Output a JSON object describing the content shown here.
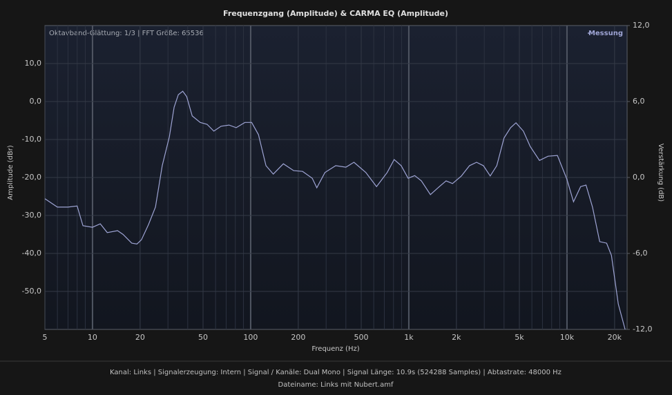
{
  "chart_data": {
    "type": "line",
    "title": "Frequenzgang (Amplitude) & CARMA EQ (Amplitude)",
    "annotation": "Oktavband-Glättung: 1/3 | FFT Größe: 65536",
    "x_label": "Frequenz (Hz)",
    "y_label": "Amplitude (dBr)",
    "y2_label": "Verstärkung (dB)",
    "x_log": true,
    "grid": true,
    "legend": "top-right",
    "xlim": [
      5,
      24000
    ],
    "xticks": [
      5,
      10,
      20,
      50,
      100,
      200,
      500,
      {
        "value": 1000,
        "label": "1k"
      },
      {
        "value": 2000,
        "label": "2k"
      },
      {
        "value": 5000,
        "label": "5k"
      },
      {
        "value": 10000,
        "label": "10k"
      },
      {
        "value": 20000,
        "label": "20k"
      }
    ],
    "ylim": [
      -60,
      20
    ],
    "yticks": [
      {
        "value": -50,
        "label": "-50,0"
      },
      {
        "value": -40,
        "label": "-40,0"
      },
      {
        "value": -30,
        "label": "-30,0"
      },
      {
        "value": -20,
        "label": "-20,0"
      },
      {
        "value": -10,
        "label": "-10,0"
      },
      {
        "value": 0,
        "label": "0,0"
      },
      {
        "value": 10,
        "label": "10,0"
      }
    ],
    "y2lim": [
      -12,
      12
    ],
    "y2ticks": [
      {
        "value": -12,
        "label": "-12,0"
      },
      {
        "value": -6,
        "label": "-6,0"
      },
      {
        "value": 0,
        "label": "0,0"
      },
      {
        "value": 6,
        "label": "6,0"
      },
      {
        "value": 12,
        "label": "12,0"
      }
    ],
    "x": [
      5,
      6,
      7,
      8,
      8.7,
      10,
      11.2,
      12.4,
      14.4,
      15.6,
      17.7,
      19.1,
      20.4,
      22.6,
      25,
      27.6,
      30.6,
      32.8,
      34.9,
      37.2,
      39.4,
      42.7,
      48,
      53,
      58.5,
      65,
      73,
      81,
      92,
      101.5,
      112,
      125,
      139,
      161,
      187,
      213,
      245,
      262,
      295,
      345,
      400,
      450,
      535,
      625,
      730,
      808,
      895,
      990,
      1090,
      1200,
      1370,
      1560,
      1720,
      1890,
      2150,
      2420,
      2680,
      2960,
      3270,
      3600,
      4000,
      4400,
      4760,
      5300,
      5850,
      6700,
      7600,
      8700,
      10000,
      11000,
      12200,
      13200,
      14500,
      16100,
      17800,
      19100,
      21100,
      23300
    ],
    "series": [
      {
        "name": "Messung",
        "color": "#9ea4d4",
        "values": [
          -25.6,
          -27.8,
          -27.8,
          -27.5,
          -32.7,
          -33.1,
          -32.2,
          -34.5,
          -34,
          -35,
          -37.3,
          -37.5,
          -36.4,
          -32.4,
          -27.8,
          -16.9,
          -9.3,
          -1.5,
          1.8,
          2.7,
          1.3,
          -3.8,
          -5.5,
          -6,
          -7.8,
          -6.5,
          -6.2,
          -6.9,
          -5.5,
          -5.5,
          -8.7,
          -16.9,
          -19.1,
          -16.4,
          -18.2,
          -18.4,
          -20.2,
          -22.7,
          -18.7,
          -16.9,
          -17.3,
          -16,
          -18.7,
          -22.4,
          -18.7,
          -15.3,
          -16.9,
          -20.2,
          -19.5,
          -20.9,
          -24.5,
          -22.4,
          -20.9,
          -21.6,
          -19.6,
          -16.9,
          -16,
          -16.9,
          -19.6,
          -16.9,
          -9.6,
          -6.9,
          -5.6,
          -7.8,
          -11.8,
          -15.5,
          -14.4,
          -14.2,
          -20.5,
          -26.4,
          -22.4,
          -22,
          -27.8,
          -36.9,
          -37.3,
          -40.5,
          -53.3,
          -60
        ]
      }
    ],
    "footer": [
      "Kanal: Links  |  Signalerzeugung: Intern  |  Signal / Kanäle: Dual Mono  |  Signal Länge: 10.9s (524288 Samples)  |  Abtastrate: 48000 Hz",
      "Dateiname: Links mit Nubert.amf"
    ]
  }
}
